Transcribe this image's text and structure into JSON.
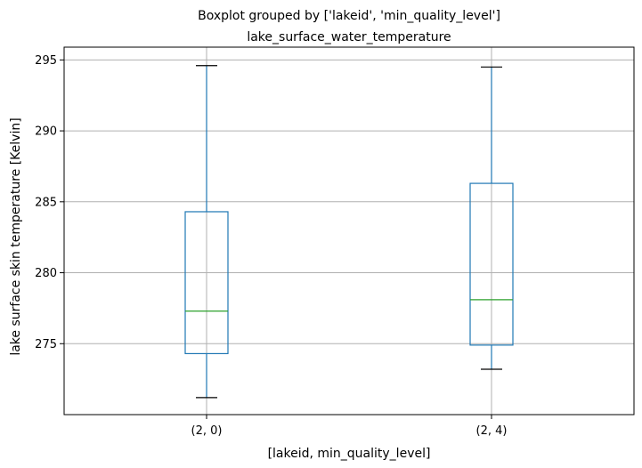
{
  "chart_data": {
    "type": "box",
    "suptitle": "Boxplot grouped by ['lakeid', 'min_quality_level']",
    "title": "lake_surface_water_temperature",
    "xlabel": "[lakeid, min_quality_level]",
    "ylabel": "lake surface skin temperature [Kelvin]",
    "ylim": [
      270.0,
      295.9
    ],
    "yticks": [
      275,
      280,
      285,
      290,
      295
    ],
    "grid": true,
    "categories": [
      "(2, 0)",
      "(2, 4)"
    ],
    "boxes": [
      {
        "category": "(2, 0)",
        "whisker_low": 271.2,
        "q1": 274.3,
        "median": 277.3,
        "q3": 284.3,
        "whisker_high": 294.6
      },
      {
        "category": "(2, 4)",
        "whisker_low": 273.2,
        "q1": 274.9,
        "median": 278.1,
        "q3": 286.3,
        "whisker_high": 294.5
      }
    ],
    "colors": {
      "box": "#1f77b4",
      "median": "#2ca02c",
      "cap": "#000000",
      "grid": "#b0b0b0"
    }
  }
}
